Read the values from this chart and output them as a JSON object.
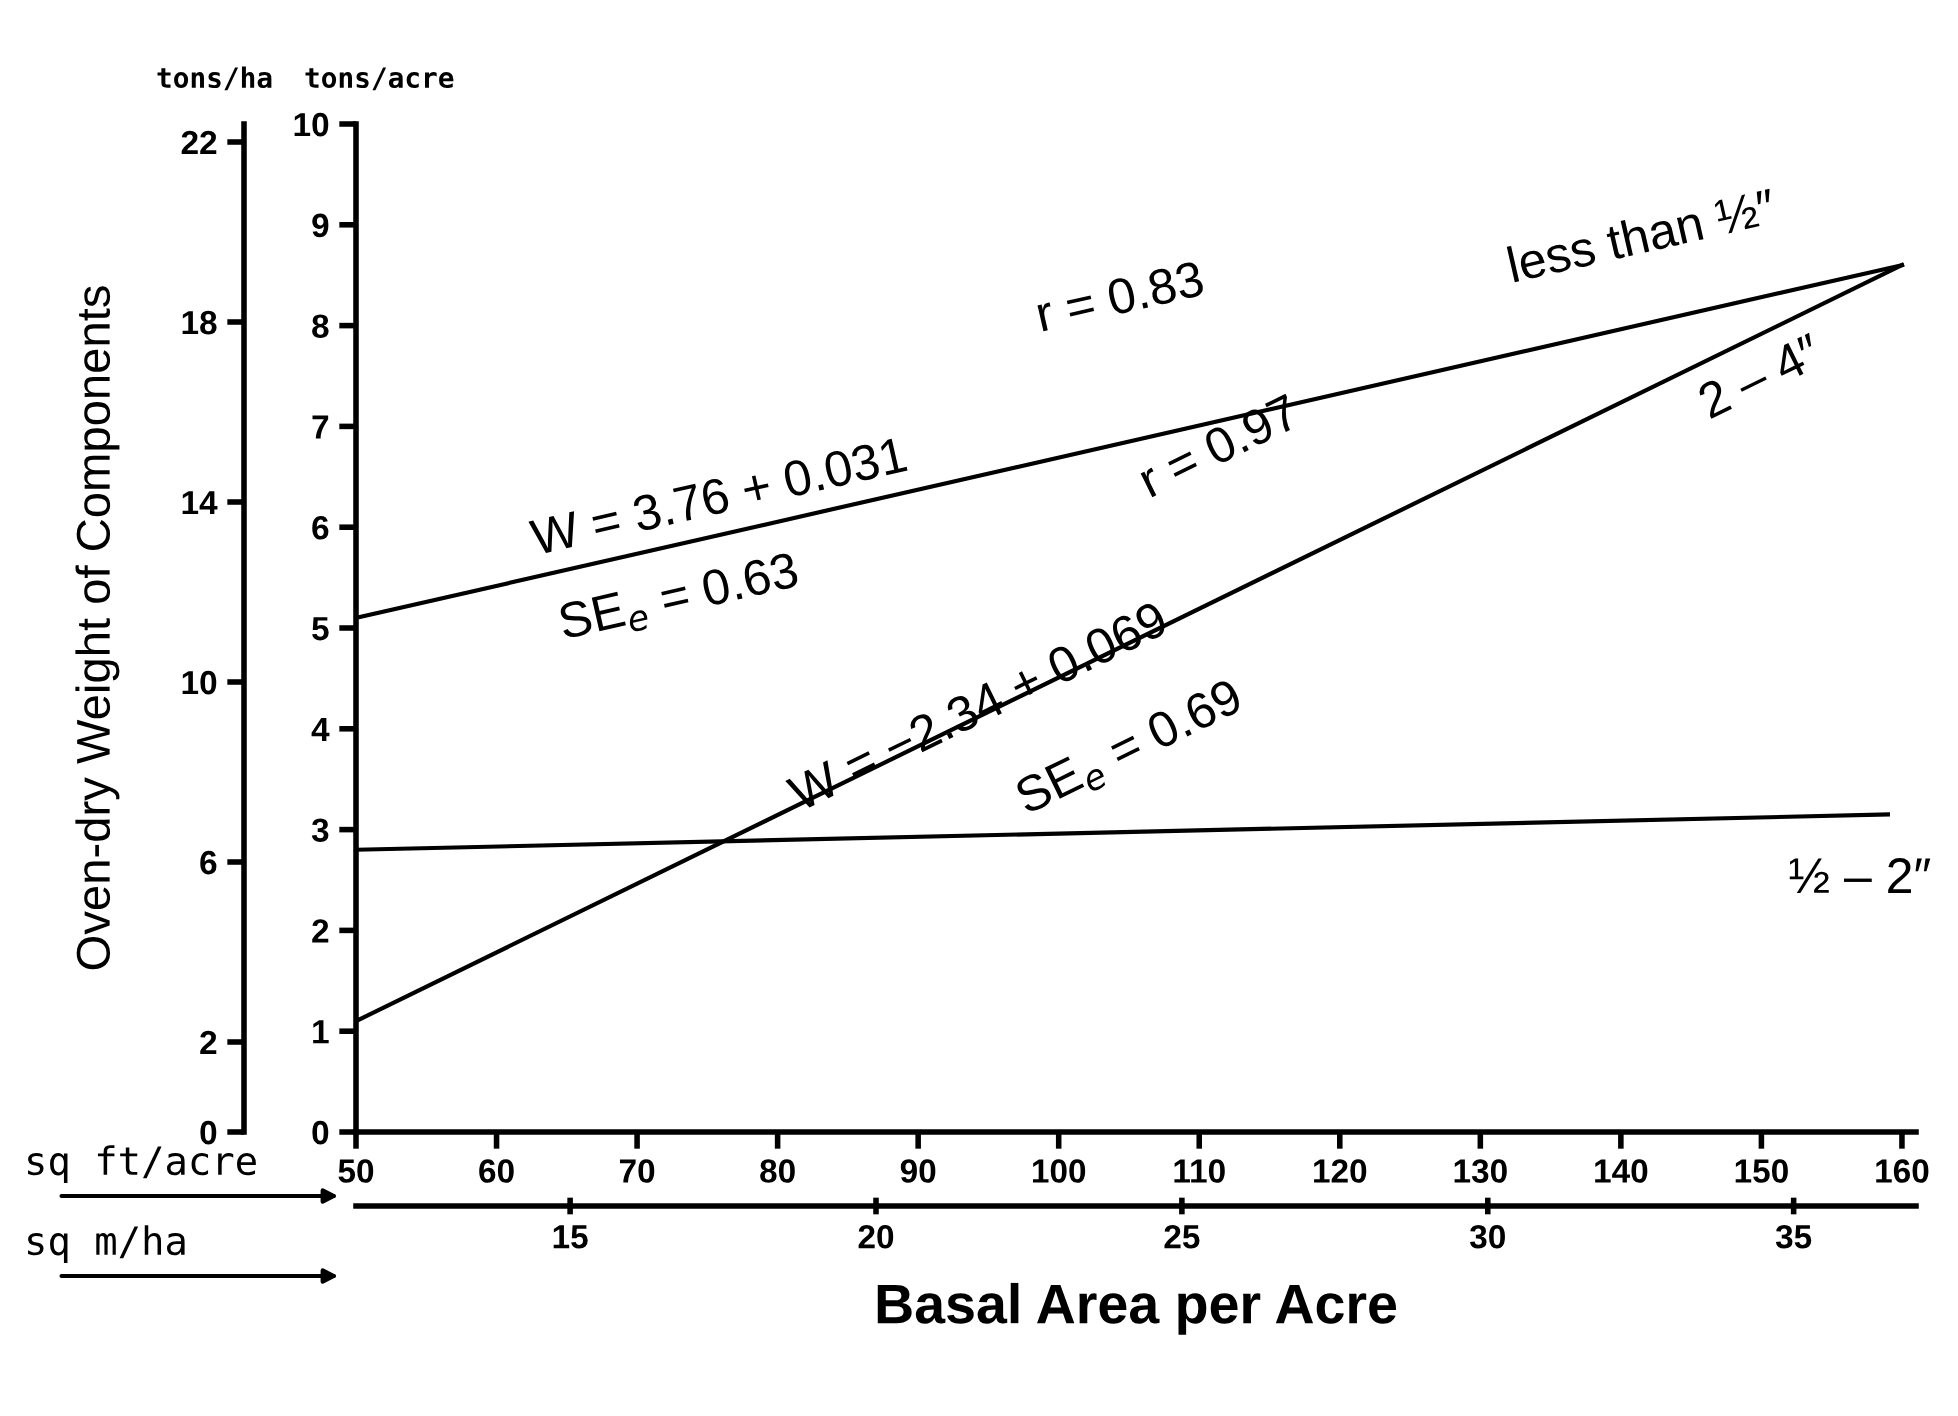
{
  "chart_data": {
    "type": "line",
    "xlabel": "Basal Area per Acre",
    "y2label": "Oven-dry Weight of Components",
    "x2label": "sq m/ha",
    "x": [
      50,
      160
    ],
    "series": [
      {
        "color": "#000000",
        "values": [
          5.1,
          8.6
        ]
      },
      {
        "color": "#000000",
        "x": [
          50,
          159
        ],
        "values": [
          2.8,
          3.15
        ]
      },
      {
        "color": "#000000",
        "values": [
          1.1,
          8.6
        ]
      }
    ],
    "xlim": [
      50,
      161
    ],
    "xticks": [
      50,
      60,
      70,
      80,
      90,
      100,
      110,
      120,
      130,
      140,
      150,
      160
    ],
    "ylim": [
      0,
      10
    ],
    "yticks": [
      0,
      1,
      2,
      3,
      4,
      5,
      6,
      7,
      8,
      9,
      10
    ],
    "y2lim": [
      0,
      22.4
    ],
    "y2ticks": [
      0,
      2,
      6,
      10,
      14,
      18,
      22
    ],
    "x2lim": [
      11.5,
      37.0
    ],
    "x2ticks": [
      15,
      20,
      25,
      30,
      35
    ],
    "grid": false,
    "annotations": [
      "tons/ha",
      "tons/acre",
      "sq ft/acre",
      "W = 3.76 + 0.031",
      "SE$_{e}$ = 0.63",
      "r = 0.83",
      "less than ½″",
      "W = −2.34 + 0.069",
      "SE$_{e}$ = 0.69",
      "r = 0.97",
      "2 – 4″",
      "½ – 2″"
    ]
  }
}
